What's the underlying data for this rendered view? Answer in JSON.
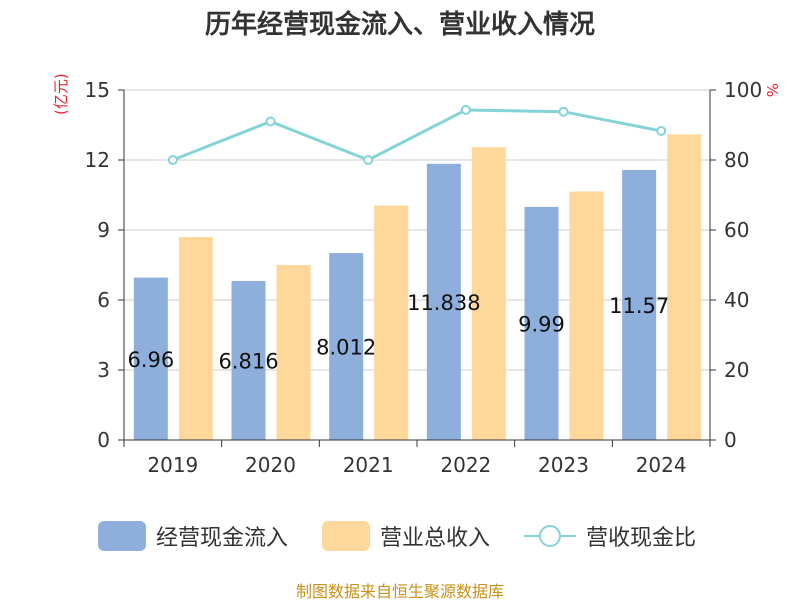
{
  "chart_data": {
    "type": "bar",
    "title": "历年经营现金流入、营业收入情况",
    "categories": [
      "2019",
      "2020",
      "2021",
      "2022",
      "2023",
      "2024"
    ],
    "left_axis": {
      "unit": "(亿元)",
      "ylim": [
        0,
        15
      ],
      "ticks": [
        0,
        3,
        6,
        9,
        12,
        15
      ]
    },
    "right_axis": {
      "unit": "%",
      "ylim": [
        0,
        100
      ],
      "ticks": [
        0,
        20,
        40,
        60,
        80,
        100
      ]
    },
    "series": [
      {
        "name": "经营现金流入",
        "type": "bar",
        "axis": "left",
        "color": "#8eaedb",
        "values": [
          6.96,
          6.816,
          8.012,
          11.838,
          9.99,
          11.57
        ],
        "labels": [
          "6.96",
          "6.816",
          "8.012",
          "11.838",
          "9.99",
          "11.57"
        ]
      },
      {
        "name": "营业总收入",
        "type": "bar",
        "axis": "left",
        "color": "#fed89a",
        "values": [
          8.7,
          7.5,
          10.05,
          12.55,
          10.65,
          13.1
        ]
      },
      {
        "name": "营收现金比",
        "type": "line",
        "axis": "right",
        "color": "#84d3d7",
        "values": [
          80,
          91,
          80,
          94.3,
          93.8,
          88.3
        ]
      }
    ],
    "grid": true,
    "legend_position": "bottom"
  },
  "source": "制图数据来自恒生聚源数据库"
}
